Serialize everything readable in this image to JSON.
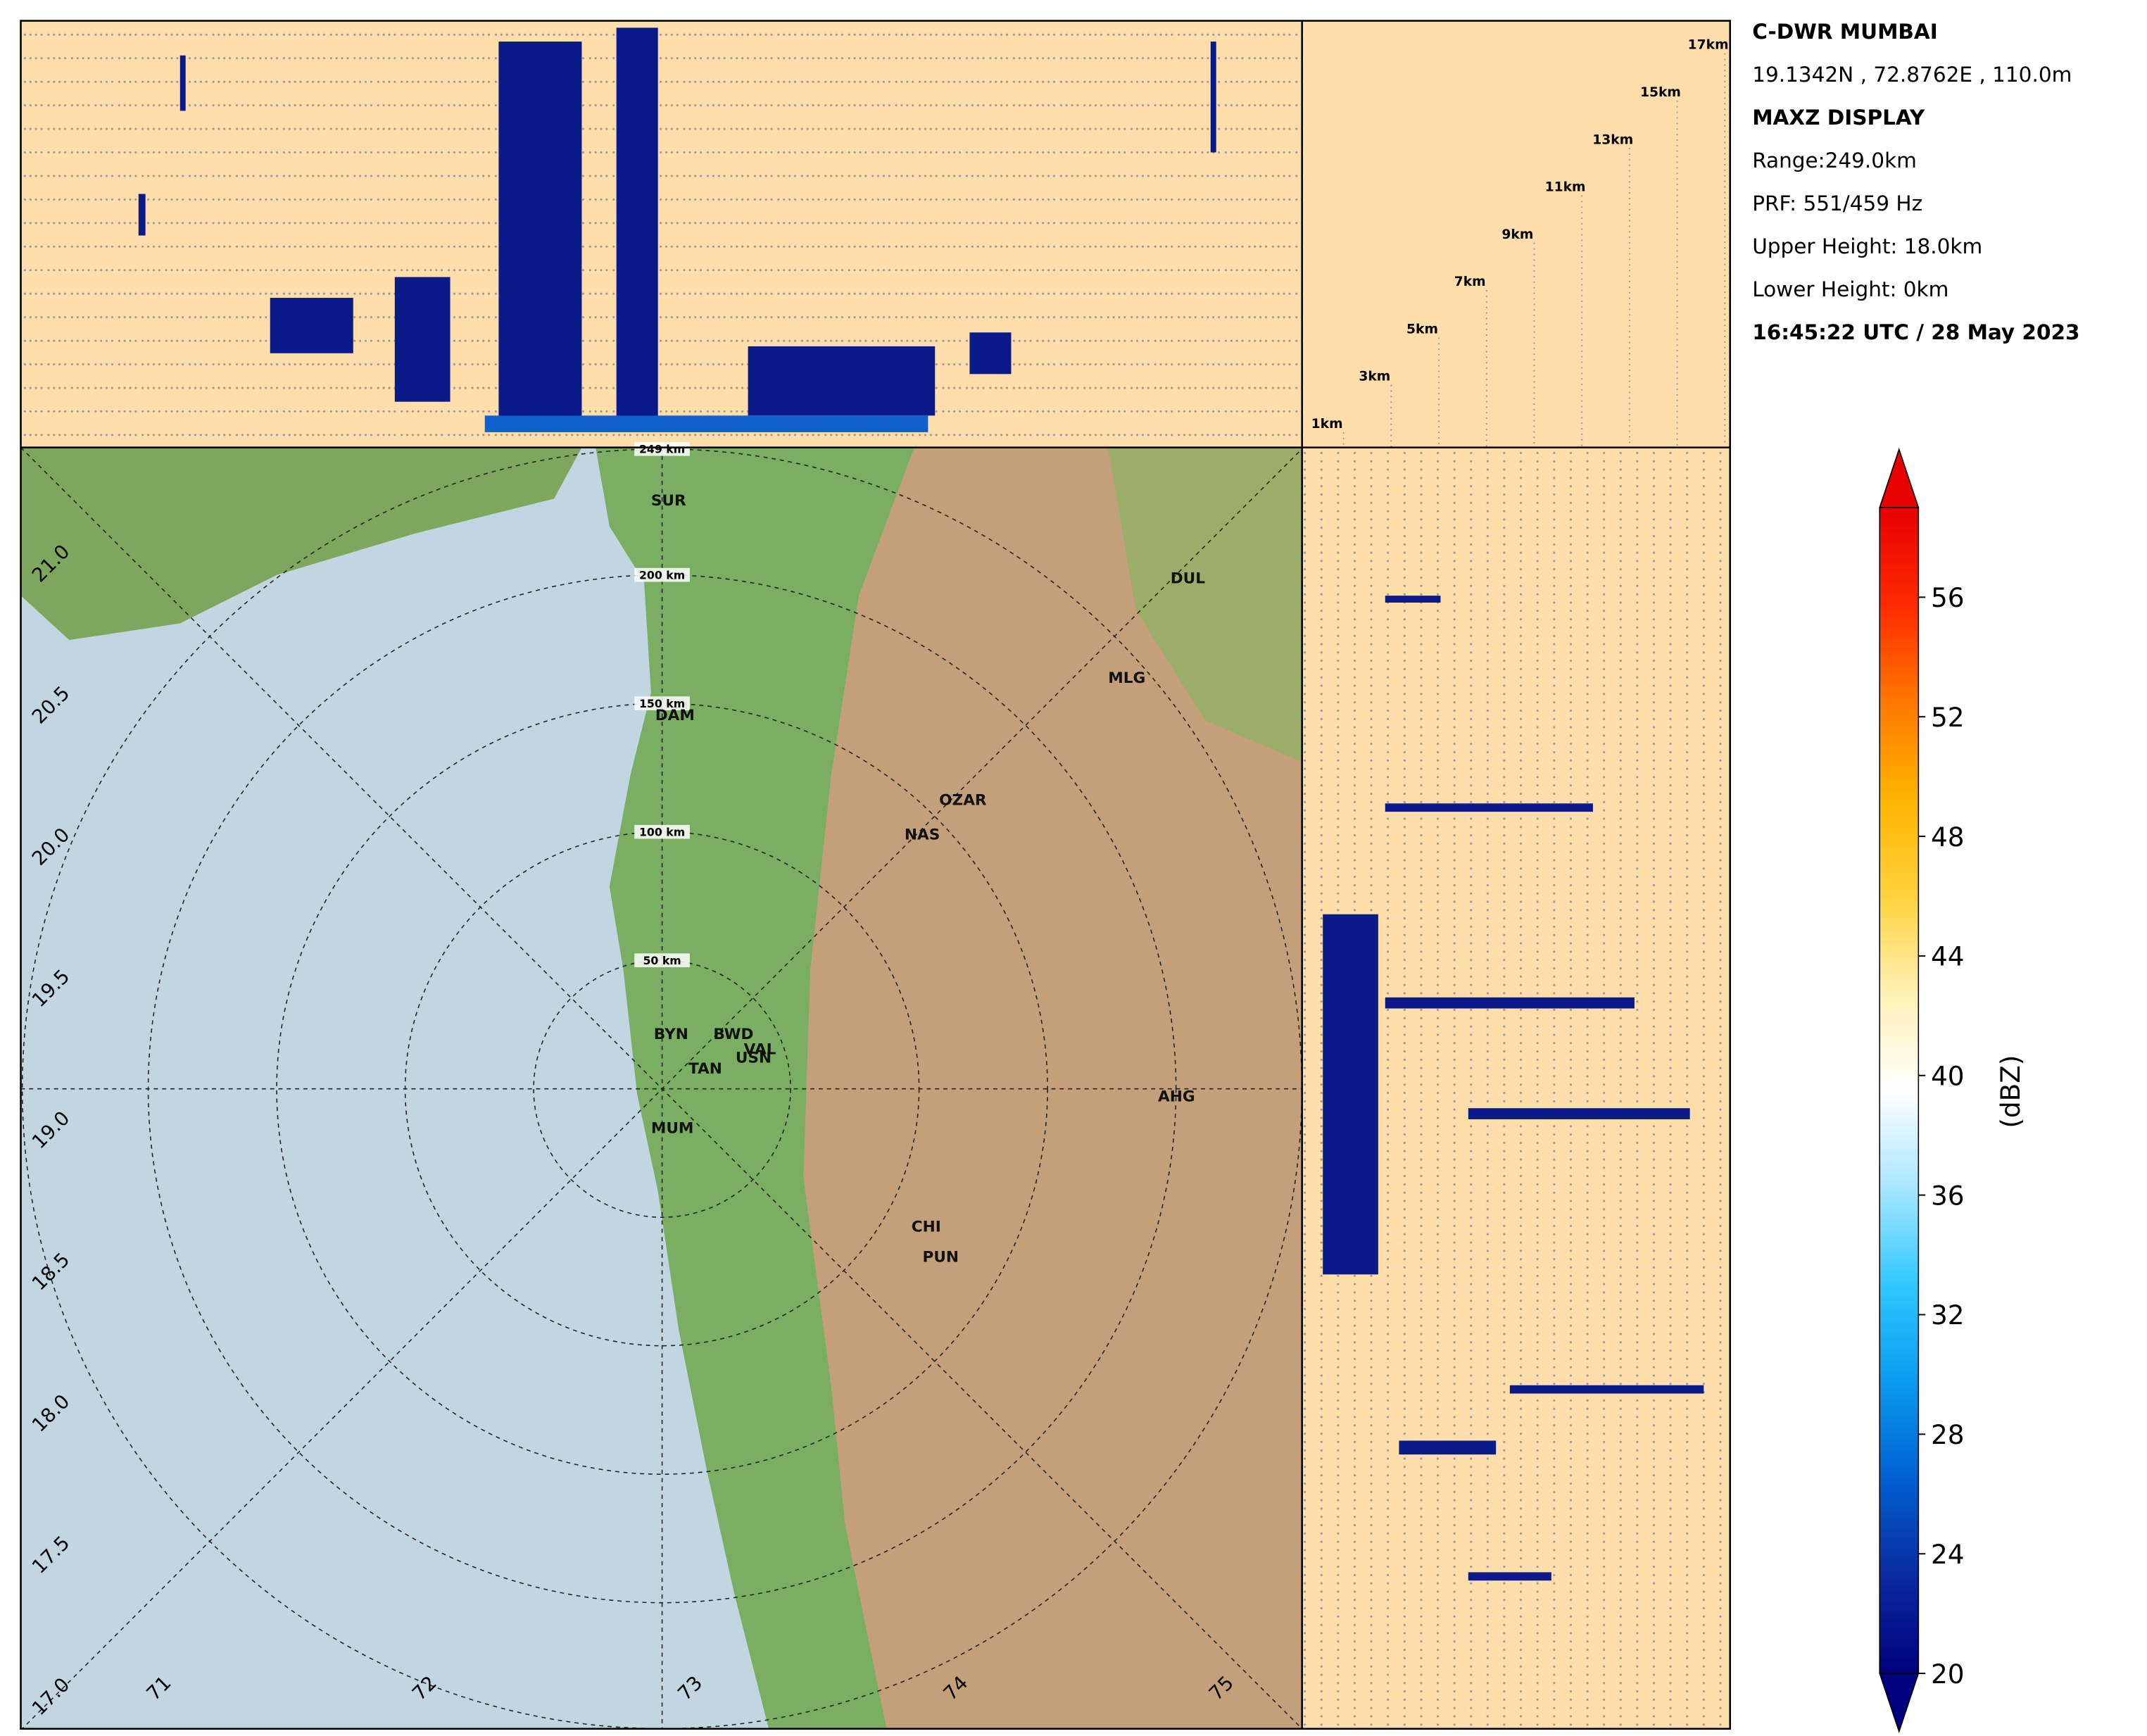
{
  "header": {
    "lines": [
      "C-DWR MUMBAI",
      "19.1342N , 72.8762E , 110.0m",
      "MAXZ DISPLAY",
      "Range:249.0km",
      "PRF: 551/459 Hz",
      "Upper Height: 18.0km",
      "Lower Height: 0km",
      "16:45:22 UTC / 28 May 2023"
    ]
  },
  "height_labels": [
    {
      "value": 1,
      "label": "1km"
    },
    {
      "value": 3,
      "label": "3km"
    },
    {
      "value": 5,
      "label": "5km"
    },
    {
      "value": 7,
      "label": "7km"
    },
    {
      "value": 9,
      "label": "9km"
    },
    {
      "value": 11,
      "label": "11km"
    },
    {
      "value": 13,
      "label": "13km"
    },
    {
      "value": 15,
      "label": "15km"
    },
    {
      "value": 17,
      "label": "17km"
    }
  ],
  "range_rings": [
    {
      "value": 50,
      "label": "50 km"
    },
    {
      "value": 100,
      "label": "100 km"
    },
    {
      "value": 150,
      "label": "150 km"
    },
    {
      "value": 200,
      "label": "200 km"
    },
    {
      "value": 249,
      "label": "249 km"
    }
  ],
  "lat_ticks": [
    {
      "value": 17,
      "label": "17.0"
    },
    {
      "value": 17.5,
      "label": "17.5"
    },
    {
      "value": 18,
      "label": "18.0"
    },
    {
      "value": 18.5,
      "label": "18.5"
    },
    {
      "value": 19,
      "label": "19.0"
    },
    {
      "value": 19.5,
      "label": "19.5"
    },
    {
      "value": 20,
      "label": "20.0"
    },
    {
      "value": 20.5,
      "label": "20.5"
    },
    {
      "value": 21,
      "label": "21.0"
    }
  ],
  "lon_ticks": [
    71,
    72,
    73,
    74,
    75
  ],
  "cities": [
    "SUR",
    "DUL",
    "MLG",
    "DAM",
    "OZAR",
    "NAS",
    "BYN",
    "BWD",
    "VAL",
    "TAN",
    "USN",
    "AHG",
    "MUM",
    "CHI",
    "PUN"
  ],
  "colorbar": {
    "label": "(dBZ)",
    "lim": [
      20,
      59
    ],
    "ticks": [
      20,
      24,
      28,
      32,
      36,
      40,
      44,
      48,
      52,
      56
    ],
    "colors": [
      "#000080",
      "#0a2aa0",
      "#0060d0",
      "#0a9af0",
      "#30c8ff",
      "#a8e6ff",
      "#ffffff",
      "#fff0b4",
      "#ffd23c",
      "#ffb400",
      "#ff7800",
      "#ff2a00",
      "#e60000"
    ]
  }
}
